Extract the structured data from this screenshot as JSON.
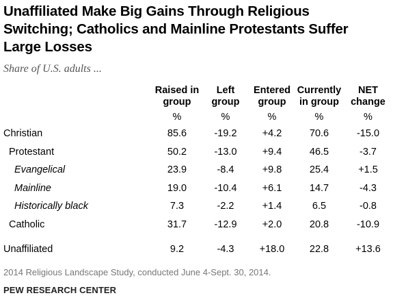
{
  "title_lines": [
    "Unaffiliated Make Big Gains Through Religious",
    "Switching; Catholics and Mainline Protestants Suffer",
    "Large Losses"
  ],
  "subtitle": "Share of U.S. adults ...",
  "chart_data": {
    "type": "table",
    "columns": [
      {
        "key": "raised",
        "lines": [
          "Raised in",
          "group"
        ],
        "unit": "%"
      },
      {
        "key": "left",
        "lines": [
          "Left",
          "group"
        ],
        "unit": "%"
      },
      {
        "key": "entered",
        "lines": [
          "Entered",
          "group"
        ],
        "unit": "%"
      },
      {
        "key": "current",
        "lines": [
          "Currently",
          "in group"
        ],
        "unit": "%"
      },
      {
        "key": "net",
        "lines": [
          "NET",
          "change"
        ],
        "unit": "%"
      }
    ],
    "rows": [
      {
        "label": "Christian",
        "level": 0,
        "values": [
          "85.6",
          "-19.2",
          "+4.2",
          "70.6",
          "-15.0"
        ]
      },
      {
        "label": "Protestant",
        "level": 1,
        "values": [
          "50.2",
          "-13.0",
          "+9.4",
          "46.5",
          "-3.7"
        ]
      },
      {
        "label": "Evangelical",
        "level": 2,
        "values": [
          "23.9",
          "-8.4",
          "+9.8",
          "25.4",
          "+1.5"
        ]
      },
      {
        "label": "Mainline",
        "level": 2,
        "values": [
          "19.0",
          "-10.4",
          "+6.1",
          "14.7",
          "-4.3"
        ]
      },
      {
        "label": "Historically black",
        "level": 2,
        "values": [
          "7.3",
          "-2.2",
          "+1.4",
          "6.5",
          "-0.8"
        ]
      },
      {
        "label": "Catholic",
        "level": 1,
        "values": [
          "31.7",
          "-12.9",
          "+2.0",
          "20.8",
          "-10.9"
        ]
      },
      {
        "label": "Unaffiliated",
        "level": 0,
        "gap_before": true,
        "values": [
          "9.2",
          "-4.3",
          "+18.0",
          "22.8",
          "+13.6"
        ]
      }
    ]
  },
  "footnote": "2014 Religious Landscape Study, conducted June 4-Sept. 30, 2014.",
  "source": "PEW RESEARCH CENTER"
}
